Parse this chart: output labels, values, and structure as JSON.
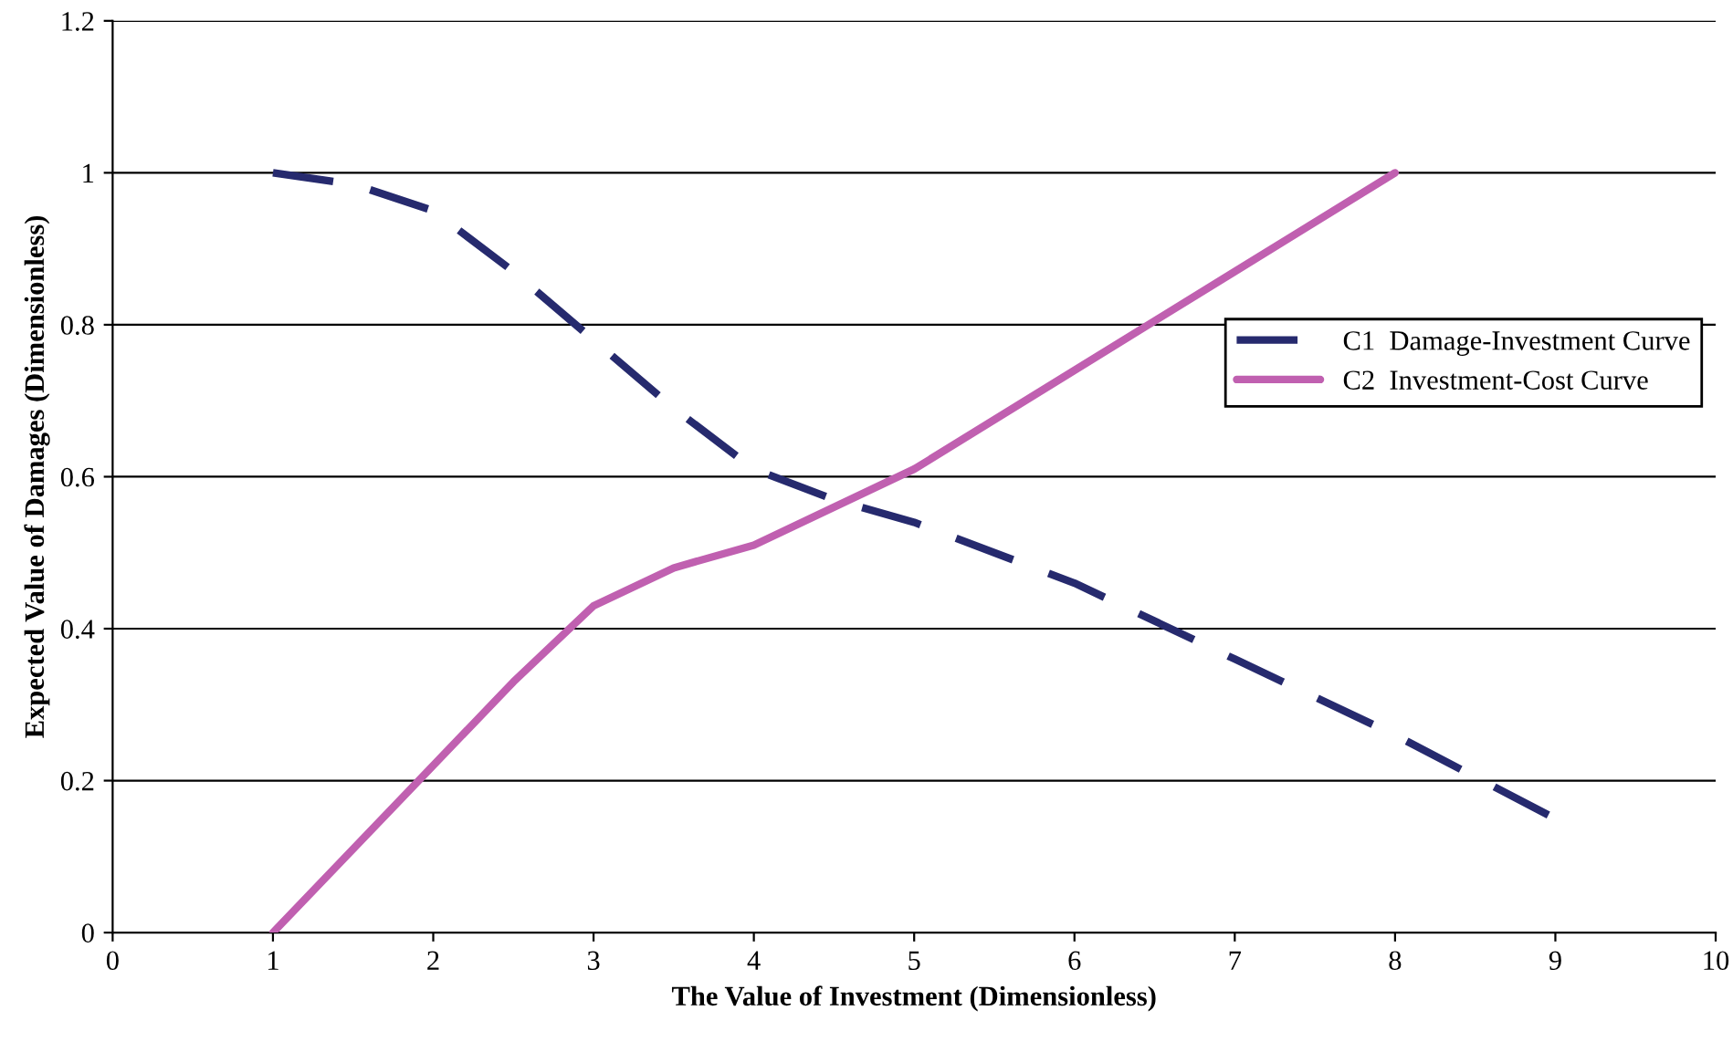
{
  "chart_data": {
    "type": "line",
    "xlabel": "The Value of Investment (Dimensionless)",
    "ylabel": "Expected Value of Damages (Dimensionless)",
    "xlim": [
      0,
      10
    ],
    "xticks": [
      0,
      1,
      2,
      3,
      4,
      5,
      6,
      7,
      8,
      9,
      10
    ],
    "ylim": [
      0,
      1.2
    ],
    "yticks": [
      0,
      0.2,
      0.4,
      0.6,
      0.8,
      1,
      1.2
    ],
    "grid": "y",
    "legend": "right",
    "marker": "none",
    "series": [
      {
        "name": "C1  Damage-Investment Curve",
        "color": "#262a6e",
        "line_style": "dashed",
        "x": [
          1,
          1.5,
          2,
          2.5,
          3,
          3.5,
          4,
          4.5,
          5,
          6,
          7,
          8,
          9
        ],
        "values": [
          1.0,
          0.985,
          0.95,
          0.87,
          0.78,
          0.69,
          0.61,
          0.57,
          0.54,
          0.46,
          0.36,
          0.26,
          0.15
        ]
      },
      {
        "name": "C2  Investment-Cost Curve",
        "color": "#c060b0",
        "line_style": "solid",
        "x": [
          1,
          2,
          2.5,
          3,
          3.5,
          4,
          5,
          6,
          7,
          8
        ],
        "values": [
          0,
          0.22,
          0.33,
          0.43,
          0.48,
          0.51,
          0.61,
          0.74,
          0.87,
          1.0
        ]
      }
    ]
  }
}
